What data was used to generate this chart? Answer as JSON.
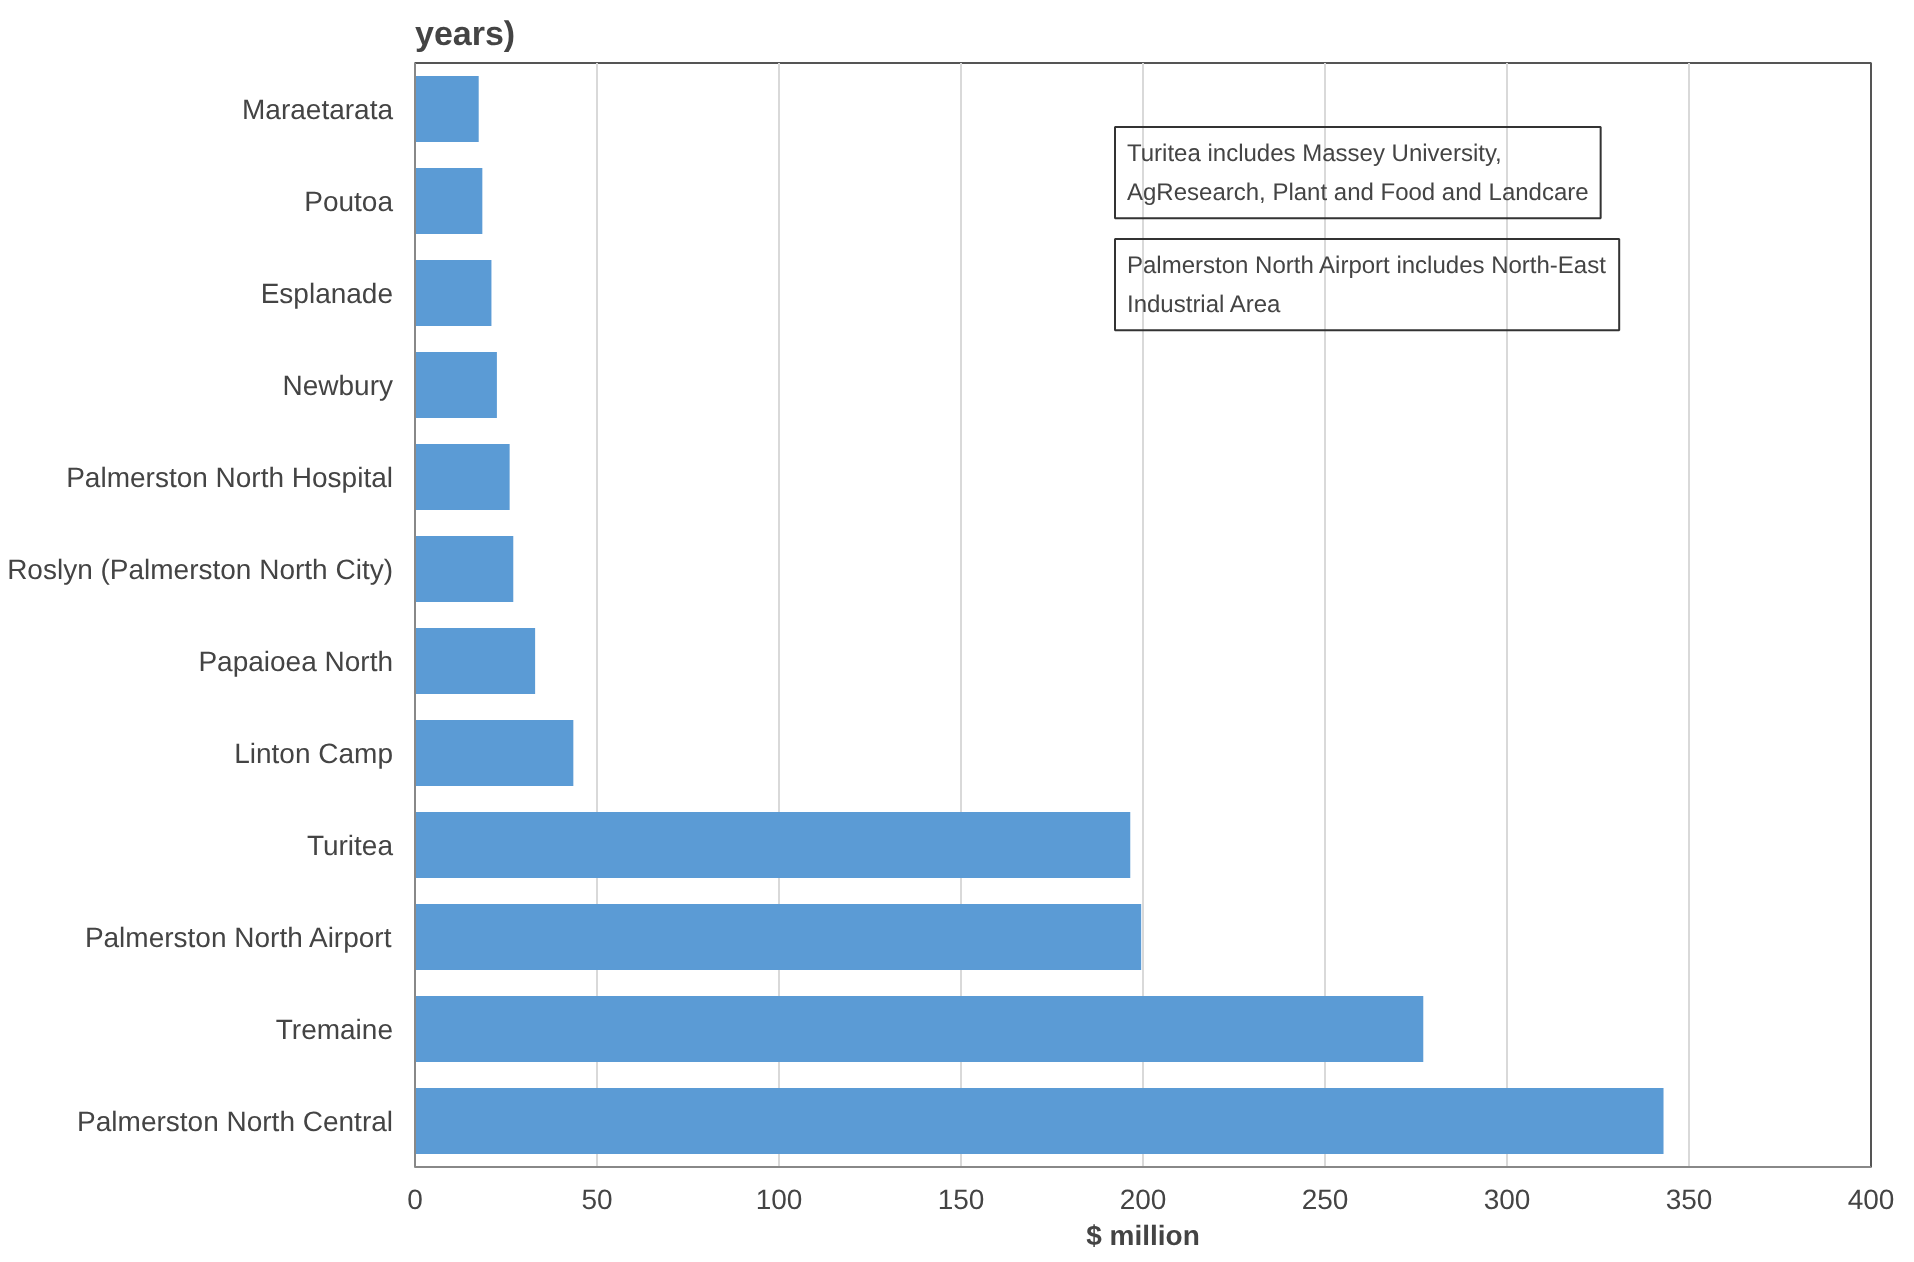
{
  "chart_data": {
    "type": "bar",
    "orientation": "horizontal",
    "title": "years)",
    "xlabel": "$ million",
    "categories": [
      "Maraetarata",
      "Poutoa",
      "Esplanade",
      "Newbury",
      "Palmerston North Hospital",
      "Roslyn (Palmerston North City)",
      "Papaioea North",
      "Linton Camp",
      "Turitea",
      "Palmerston North Airport",
      "Tremaine",
      "Palmerston North Central"
    ],
    "values": [
      17.5,
      18.5,
      21,
      22.5,
      26,
      27,
      33,
      43.5,
      196.5,
      199.5,
      277,
      343
    ],
    "color": "#5b9bd5",
    "xlim": [
      0,
      400
    ],
    "xticks": [
      0,
      50,
      100,
      150,
      200,
      250,
      300,
      350,
      400
    ],
    "grid": "x",
    "annotations": [
      "Turitea includes Massey University, AgResearch, Plant and Food and Landcare",
      "Palmerston North Airport includes North-East Industrial Area"
    ]
  }
}
